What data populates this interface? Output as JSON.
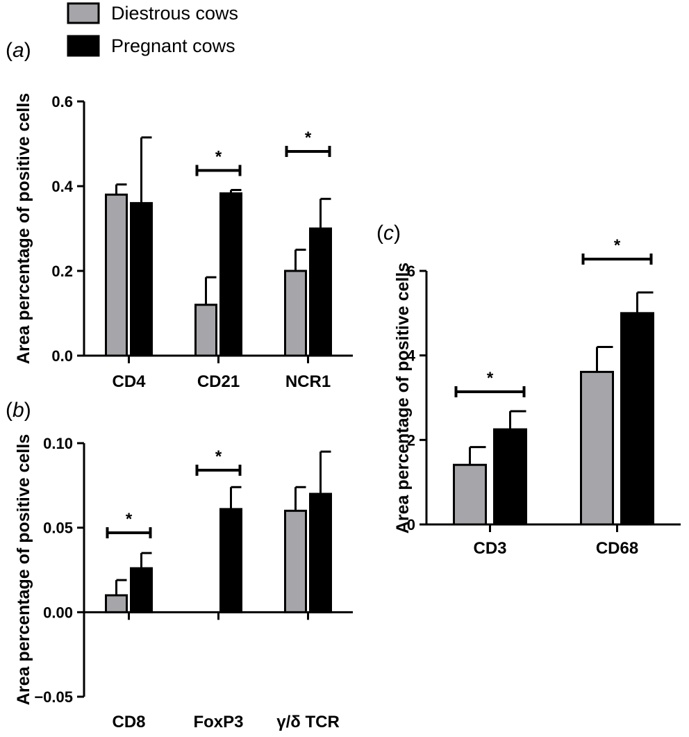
{
  "legend": {
    "items": [
      {
        "label": "Diestrous cows",
        "color": "#a6a6aa"
      },
      {
        "label": "Pregnant cows",
        "color": "#000000"
      }
    ],
    "placement": "top-left"
  },
  "chart_data": [
    {
      "panel": "(a)",
      "type": "bar",
      "ylabel": "Area percentage of positive cells",
      "ylim": [
        0,
        0.6
      ],
      "yticks": [
        "0.0",
        "0.2",
        "0.4",
        "0.6"
      ],
      "categories": [
        "CD4",
        "CD21",
        "NCR1"
      ],
      "series": [
        {
          "name": "Diestrous cows",
          "values": [
            0.38,
            0.12,
            0.2
          ],
          "errors": [
            0.024,
            0.065,
            0.05
          ]
        },
        {
          "name": "Pregnant cows",
          "values": [
            0.36,
            0.383,
            0.3
          ],
          "errors": [
            0.155,
            0.008,
            0.07
          ]
        }
      ],
      "significance": [
        {
          "category": "CD21",
          "label": "*",
          "level": 0.437
        },
        {
          "category": "NCR1",
          "label": "*",
          "level": 0.482
        }
      ],
      "grid": false
    },
    {
      "panel": "(b)",
      "type": "bar",
      "ylabel": "Area percentage of positive cells",
      "ylim": [
        -0.05,
        0.1
      ],
      "yticks": [
        "−0.05",
        "0.00",
        "0.05",
        "0.10"
      ],
      "categories": [
        "CD8",
        "FoxP3",
        "γ/δ TCR"
      ],
      "series": [
        {
          "name": "Diestrous cows",
          "values": [
            0.01,
            0.0,
            0.06
          ],
          "errors": [
            0.009,
            0.0,
            0.014
          ]
        },
        {
          "name": "Pregnant cows",
          "values": [
            0.026,
            0.061,
            0.07
          ],
          "errors": [
            0.009,
            0.013,
            0.025
          ]
        }
      ],
      "significance": [
        {
          "category": "CD8",
          "label": "*",
          "level": 0.047
        },
        {
          "category": "FoxP3",
          "label": "*",
          "level": 0.084
        }
      ],
      "grid": false
    },
    {
      "panel": "(c)",
      "type": "bar",
      "ylabel": "Area percentage of positive cells",
      "ylim": [
        0,
        6
      ],
      "yticks": [
        "0",
        "2",
        "4",
        "6"
      ],
      "categories": [
        "CD3",
        "CD68"
      ],
      "series": [
        {
          "name": "Diestrous cows",
          "values": [
            1.41,
            3.61
          ],
          "errors": [
            0.42,
            0.59
          ]
        },
        {
          "name": "Pregnant cows",
          "values": [
            2.25,
            5.0
          ],
          "errors": [
            0.43,
            0.49
          ]
        }
      ],
      "significance": [
        {
          "category": "CD3",
          "label": "*",
          "level": 3.14
        },
        {
          "category": "CD68",
          "label": "*",
          "level": 6.28
        }
      ],
      "grid": false
    }
  ]
}
